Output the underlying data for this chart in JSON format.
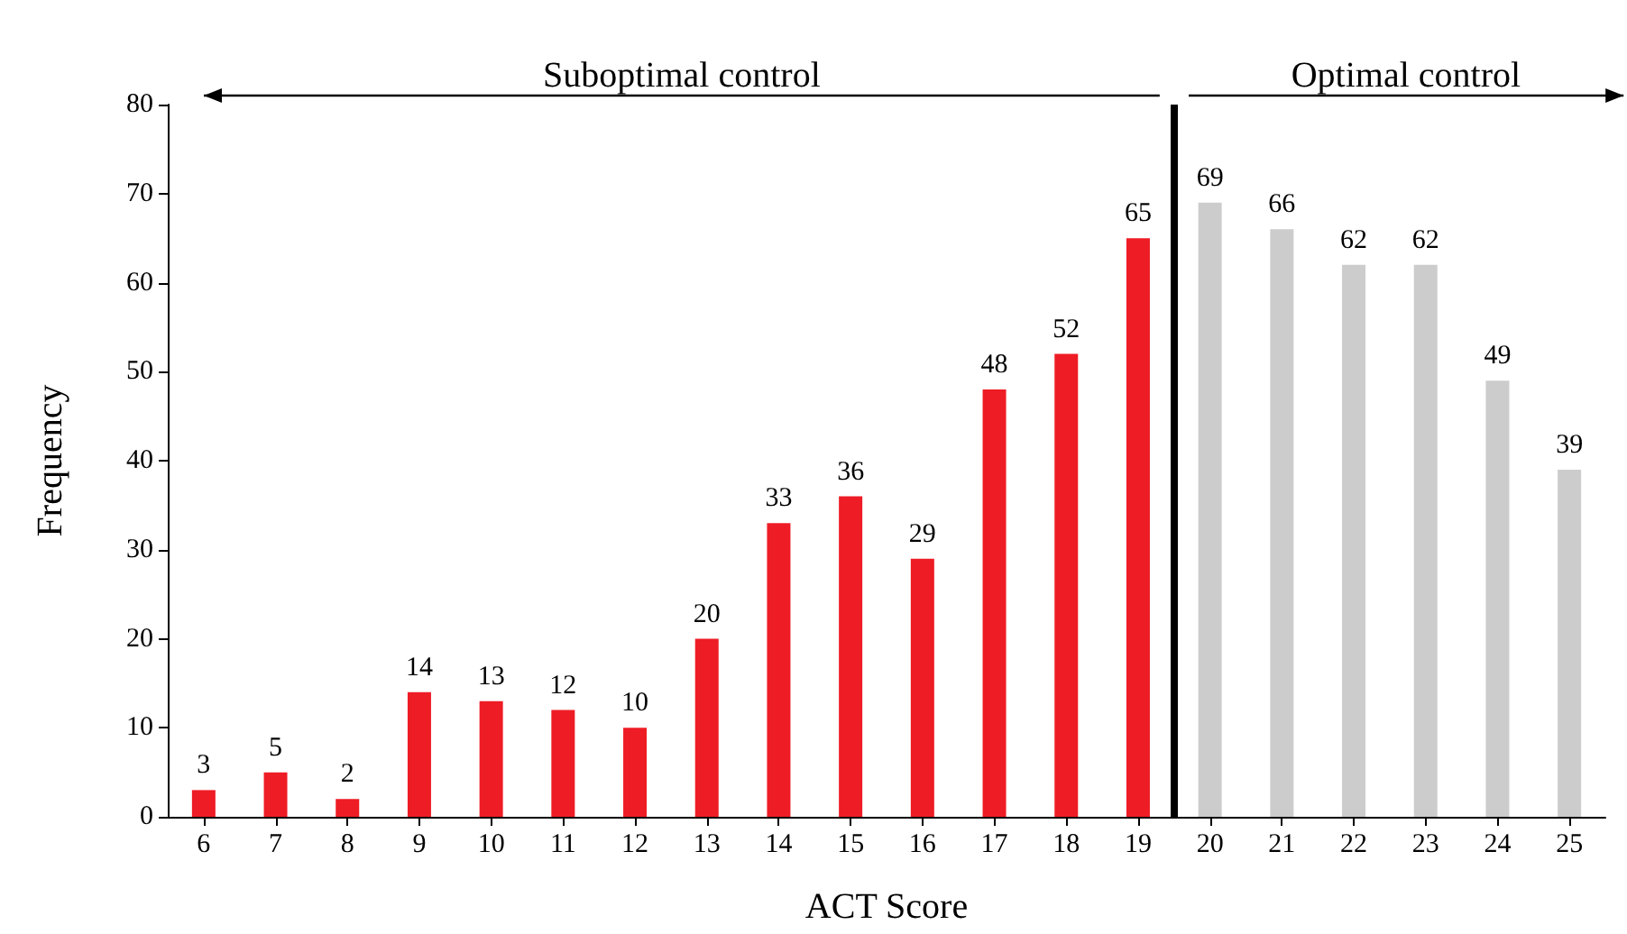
{
  "chart_data": {
    "type": "bar",
    "xlabel": "ACT Score",
    "ylabel": "Frequency",
    "x": [
      6,
      7,
      8,
      9,
      10,
      11,
      12,
      13,
      14,
      15,
      16,
      17,
      18,
      19,
      20,
      21,
      22,
      23,
      24,
      25
    ],
    "values": [
      3,
      5,
      2,
      14,
      13,
      12,
      10,
      20,
      33,
      36,
      29,
      48,
      52,
      65,
      69,
      66,
      62,
      62,
      49,
      39
    ],
    "colors": [
      "#ee1c25",
      "#ee1c25",
      "#ee1c25",
      "#ee1c25",
      "#ee1c25",
      "#ee1c25",
      "#ee1c25",
      "#ee1c25",
      "#ee1c25",
      "#ee1c25",
      "#ee1c25",
      "#ee1c25",
      "#ee1c25",
      "#ee1c25",
      "#cccccc",
      "#cccccc",
      "#cccccc",
      "#cccccc",
      "#cccccc",
      "#cccccc"
    ],
    "xlim": [
      5.5,
      25.5
    ],
    "xticks": [
      6,
      7,
      8,
      9,
      10,
      11,
      12,
      13,
      14,
      15,
      16,
      17,
      18,
      19,
      20,
      21,
      22,
      23,
      24,
      25
    ],
    "ylim": [
      0,
      80
    ],
    "yticks": [
      0,
      10,
      20,
      30,
      40,
      50,
      60,
      70,
      80
    ],
    "data_labels": true,
    "grid": false,
    "ref_lines": [
      {
        "axis": "x",
        "value": 19.5,
        "color": "#000000"
      }
    ],
    "annotations": [
      "Suboptimal control",
      "Optimal control"
    ]
  }
}
